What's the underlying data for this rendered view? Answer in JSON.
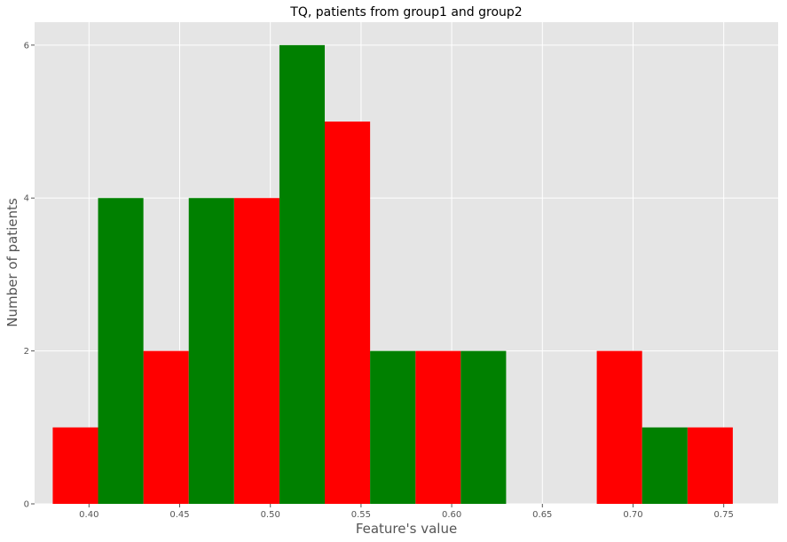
{
  "chart_data": {
    "type": "bar",
    "title": "TQ, patients from group1 and group2",
    "xlabel": "Feature's value",
    "ylabel": "Number of patients",
    "xlim": [
      0.37,
      0.78
    ],
    "ylim": [
      0,
      6.3
    ],
    "xticks": [
      0.4,
      0.45,
      0.5,
      0.55,
      0.6,
      0.65,
      0.7,
      0.75
    ],
    "xtick_labels": [
      "0.40",
      "0.45",
      "0.50",
      "0.55",
      "0.60",
      "0.65",
      "0.70",
      "0.75"
    ],
    "yticks": [
      0,
      2,
      4,
      6
    ],
    "ytick_labels": [
      "0",
      "2",
      "4",
      "6"
    ],
    "grid": true,
    "background_color": "#e5e5e5",
    "grid_color": "#ffffff",
    "bin_edges": [
      0.38,
      0.43,
      0.48,
      0.53,
      0.58,
      0.63,
      0.68,
      0.73,
      0.78
    ],
    "series": [
      {
        "color": "#ff0000",
        "values": [
          1,
          2,
          4,
          5,
          2,
          0,
          2,
          1
        ]
      },
      {
        "color": "#008000",
        "values": [
          4,
          4,
          6,
          2,
          2,
          0,
          1,
          0
        ]
      }
    ]
  }
}
